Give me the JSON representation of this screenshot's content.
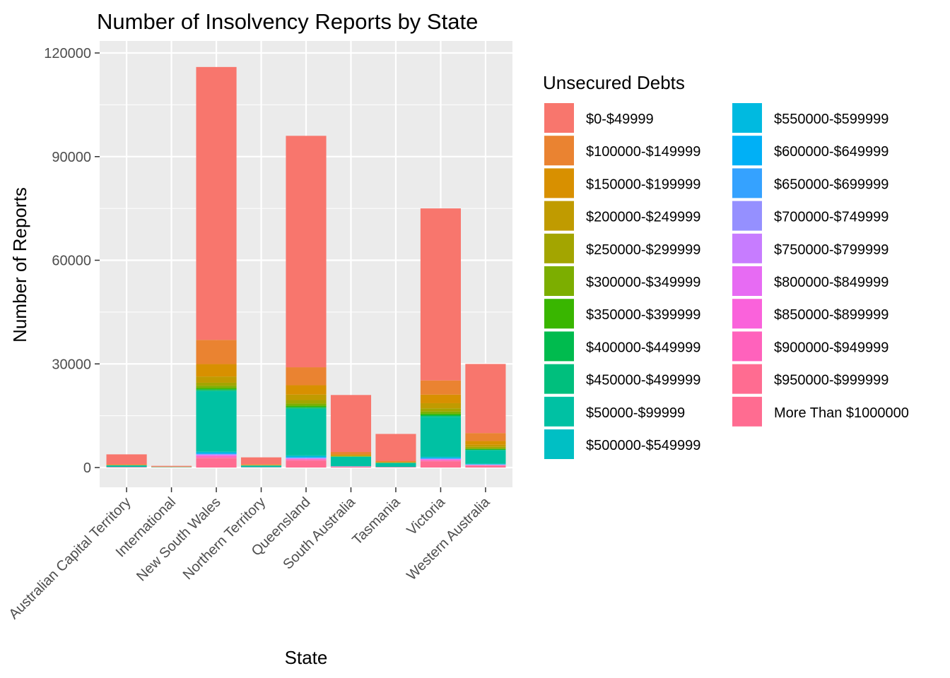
{
  "chart_data": {
    "type": "bar",
    "stacked": true,
    "title": "Number of Insolvency Reports by State",
    "xlabel": "State",
    "ylabel": "Number of Reports",
    "ylim": [
      -5500,
      120000
    ],
    "yticks": [
      0,
      30000,
      60000,
      90000,
      120000
    ],
    "grid": true,
    "legend_position": "right",
    "legend_title": "Unsecured Debts",
    "categories": [
      "Australian Capital Territory",
      "International",
      "New South Wales",
      "Northern Territory",
      "Queensland",
      "South Australia",
      "Tasmania",
      "Victoria",
      "Western Australia"
    ],
    "series": [
      {
        "name": "$0-$49999",
        "color": "#F8766D",
        "values": [
          2900,
          200,
          79000,
          2000,
          67000,
          16500,
          7800,
          49800,
          20000
        ]
      },
      {
        "name": "$100000-$149999",
        "color": "#EA8331",
        "values": [
          150,
          50,
          7000,
          200,
          5200,
          700,
          300,
          4100,
          2300
        ]
      },
      {
        "name": "$150000-$199999",
        "color": "#D89000",
        "values": [
          60,
          50,
          3600,
          80,
          2700,
          300,
          130,
          2500,
          1100
        ]
      },
      {
        "name": "$200000-$249999",
        "color": "#C09B00",
        "values": [
          30,
          20,
          1800,
          40,
          1600,
          150,
          60,
          1500,
          600
        ]
      },
      {
        "name": "$250000-$299999",
        "color": "#A3A500",
        "values": [
          20,
          10,
          900,
          20,
          1000,
          90,
          40,
          900,
          350
        ]
      },
      {
        "name": "$300000-$349999",
        "color": "#7CAE00",
        "values": [
          15,
          10,
          600,
          15,
          600,
          60,
          30,
          600,
          250
        ]
      },
      {
        "name": "$350000-$399999",
        "color": "#39B600",
        "values": [
          10,
          5,
          400,
          10,
          400,
          40,
          20,
          400,
          170
        ]
      },
      {
        "name": "$400000-$449999",
        "color": "#00BB4E",
        "values": [
          10,
          5,
          300,
          10,
          300,
          30,
          15,
          300,
          120
        ]
      },
      {
        "name": "$450000-$499999",
        "color": "#00BF7D",
        "values": [
          10,
          5,
          200,
          10,
          200,
          25,
          10,
          250,
          100
        ]
      },
      {
        "name": "$50000-$99999",
        "color": "#00C1A3",
        "values": [
          450,
          60,
          17500,
          450,
          13500,
          2700,
          1150,
          11500,
          3900
        ]
      },
      {
        "name": "$500000-$549999",
        "color": "#00BFC4",
        "values": [
          10,
          5,
          250,
          5,
          250,
          20,
          10,
          200,
          80
        ]
      },
      {
        "name": "$550000-$599999",
        "color": "#00BAE0",
        "values": [
          10,
          5,
          200,
          5,
          200,
          20,
          10,
          150,
          70
        ]
      },
      {
        "name": "$600000-$649999",
        "color": "#00B0F6",
        "values": [
          5,
          5,
          180,
          5,
          150,
          15,
          10,
          150,
          60
        ]
      },
      {
        "name": "$650000-$699999",
        "color": "#35A2FF",
        "values": [
          5,
          5,
          150,
          5,
          120,
          15,
          5,
          120,
          50
        ]
      },
      {
        "name": "$700000-$749999",
        "color": "#9590FF",
        "values": [
          5,
          5,
          150,
          5,
          120,
          10,
          5,
          100,
          40
        ]
      },
      {
        "name": "$750000-$799999",
        "color": "#C77CFF",
        "values": [
          5,
          5,
          130,
          5,
          100,
          10,
          5,
          90,
          40
        ]
      },
      {
        "name": "$800000-$849999",
        "color": "#E76BF3",
        "values": [
          5,
          5,
          150,
          5,
          100,
          10,
          5,
          90,
          40
        ]
      },
      {
        "name": "$850000-$899999",
        "color": "#FA62DB",
        "values": [
          5,
          5,
          130,
          5,
          100,
          10,
          5,
          80,
          30
        ]
      },
      {
        "name": "$900000-$949999",
        "color": "#FF62BC",
        "values": [
          5,
          5,
          500,
          5,
          300,
          30,
          15,
          300,
          100
        ]
      },
      {
        "name": "$950000-$999999",
        "color": "#FF6C91",
        "values": [
          5,
          5,
          100,
          5,
          80,
          10,
          5,
          80,
          30
        ]
      },
      {
        "name": "More Than $1000000",
        "color": "#FF6C91",
        "values": [
          100,
          20,
          2700,
          60,
          2000,
          250,
          100,
          1800,
          550
        ]
      }
    ]
  }
}
